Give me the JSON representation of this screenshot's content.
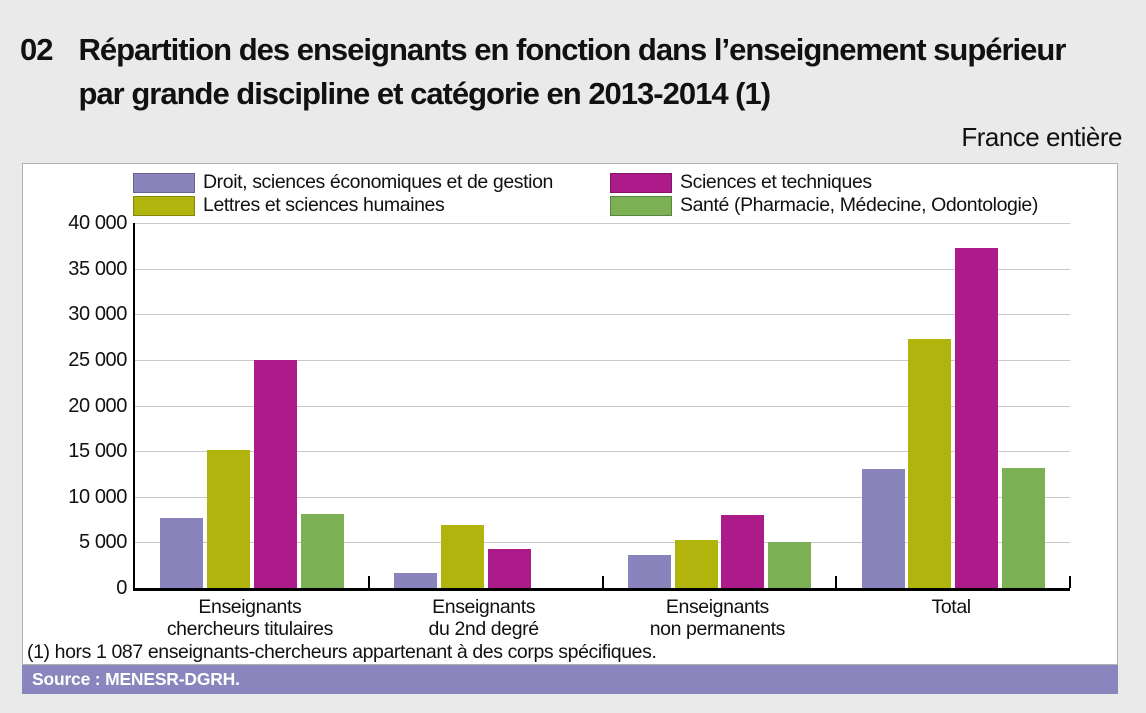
{
  "header": {
    "number": "02",
    "title": "Répartition des enseignants en fonction dans l’enseignement supérieur par grande discipline et catégorie en 2013-2014 (1)",
    "region": "France entière"
  },
  "footnote": "(1) hors 1 087 enseignants-chercheurs appartenant à des corps spécifiques.",
  "source": "Source : MENESR-DGRH.",
  "colors": {
    "background": "#eaeaea",
    "panel": "#ffffff",
    "axis": "#000000",
    "gridline": "#c9c9c9",
    "source_bar": "#8a85bd",
    "source_text": "#ffffff"
  },
  "chart_data": {
    "type": "bar",
    "title": "Répartition des enseignants en fonction dans l’enseignement supérieur par grande discipline et catégorie en 2013-2014 (1)",
    "subtitle": "France entière",
    "categories": [
      "Enseignants chercheurs titulaires",
      "Enseignants du 2nd degré",
      "Enseignants non permanents",
      "Total"
    ],
    "categories_lines": [
      [
        "Enseignants",
        "chercheurs titulaires"
      ],
      [
        "Enseignants",
        "du 2nd degré"
      ],
      [
        "Enseignants",
        "non permanents"
      ],
      [
        "Total"
      ]
    ],
    "series": [
      {
        "name": "Droit, sciences économiques et de gestion",
        "color": "#8a84bd",
        "values": [
          7700,
          1700,
          3600,
          13000
        ]
      },
      {
        "name": "Lettres et sciences humaines",
        "color": "#b2b40e",
        "values": [
          15100,
          6900,
          5300,
          27300
        ]
      },
      {
        "name": "Sciences et techniques",
        "color": "#ad1b8a",
        "values": [
          25000,
          4300,
          8000,
          37300
        ]
      },
      {
        "name": "Santé (Pharmacie, Médecine, Odontologie)",
        "color": "#7bb055",
        "values": [
          8100,
          0,
          5000,
          13100
        ]
      }
    ],
    "xlabel": "",
    "ylabel": "",
    "ylim": [
      0,
      40000
    ],
    "y_tick_step": 5000,
    "y_tick_labels": [
      "0",
      "5 000",
      "10 000",
      "15 000",
      "20 000",
      "25 000",
      "30 000",
      "35 000",
      "40 000"
    ],
    "grid": true,
    "legend_position": "top",
    "legend_columns": [
      [
        0,
        1
      ],
      [
        2,
        3
      ]
    ]
  }
}
